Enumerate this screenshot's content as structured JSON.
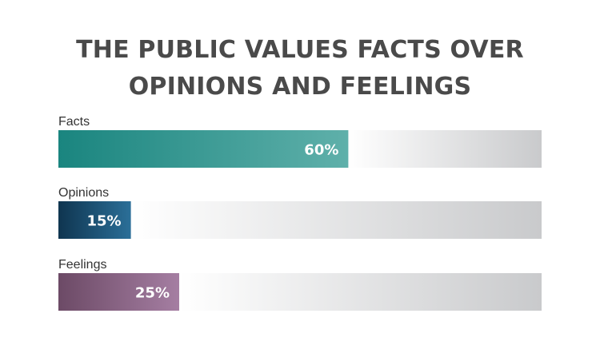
{
  "chart_data": {
    "type": "bar",
    "orientation": "horizontal",
    "title": [
      "THE PUBLIC VALUES FACTS OVER",
      "OPINIONS AND FEELINGS"
    ],
    "categories": [
      "Facts",
      "Opinions",
      "Feelings"
    ],
    "values": [
      60,
      15,
      25
    ],
    "value_labels": [
      "60%",
      "15%",
      "25%"
    ],
    "xlim": [
      0,
      100
    ],
    "grid": false,
    "legend": "none",
    "colors": [
      [
        "#1a857f",
        "#5fb0aa"
      ],
      [
        "#0f3550",
        "#2b6f98"
      ],
      [
        "#6c4a66",
        "#a57ea2"
      ]
    ],
    "track_color": "#c9cacc"
  }
}
